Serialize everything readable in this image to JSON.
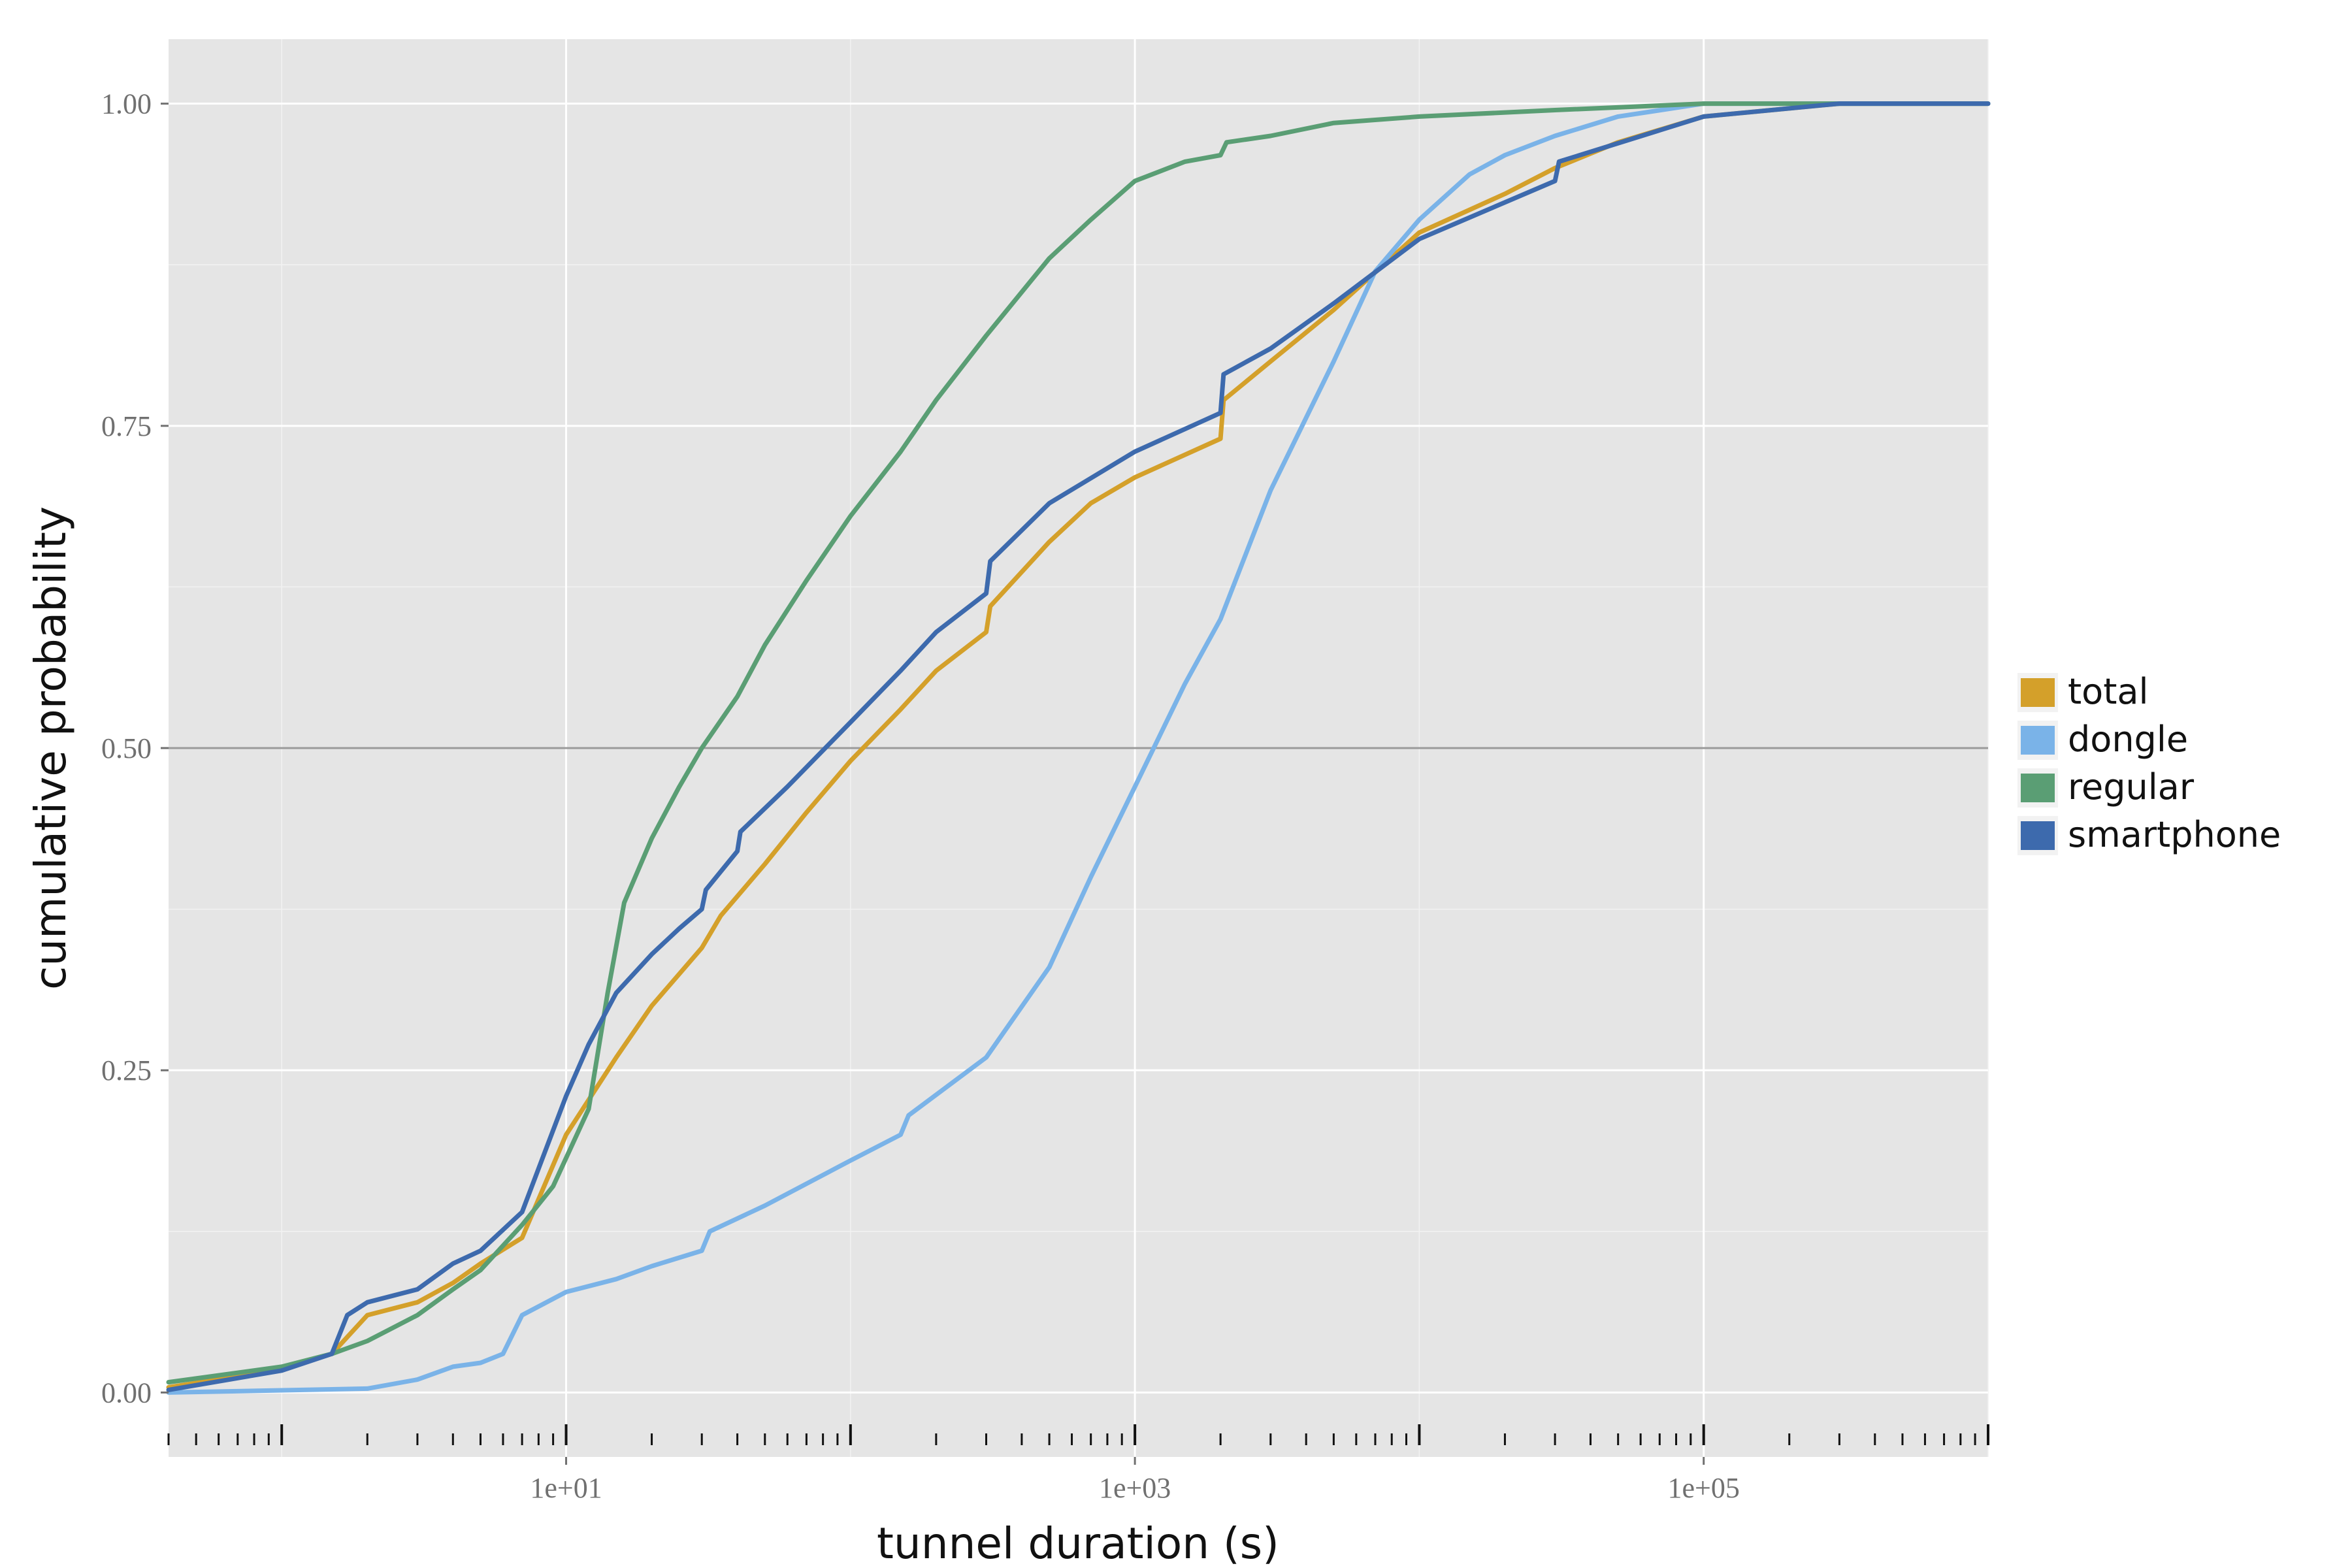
{
  "chart_data": {
    "type": "line",
    "title": "",
    "xlabel": "tunnel duration (s)",
    "ylabel": "cumulative probability",
    "x_scale": "log10",
    "xlim": [
      0.4,
      1000000
    ],
    "ylim": [
      -0.05,
      1.05
    ],
    "x_ticks": [
      {
        "value": 10,
        "label": "1e+01"
      },
      {
        "value": 1000,
        "label": "1e+03"
      },
      {
        "value": 100000,
        "label": "1e+05"
      }
    ],
    "y_ticks": [
      {
        "value": 0.0,
        "label": "0.00"
      },
      {
        "value": 0.25,
        "label": "0.25"
      },
      {
        "value": 0.5,
        "label": "0.50"
      },
      {
        "value": 0.75,
        "label": "0.75"
      },
      {
        "value": 1.0,
        "label": "1.00"
      }
    ],
    "reference_line": {
      "y": 0.5
    },
    "grid": true,
    "legend_position": "right",
    "series": [
      {
        "name": "total",
        "color": "#d4a02a",
        "points": [
          [
            0.4,
            0.004
          ],
          [
            1,
            0.018
          ],
          [
            1.5,
            0.03
          ],
          [
            2,
            0.06
          ],
          [
            3,
            0.07
          ],
          [
            4,
            0.085
          ],
          [
            5,
            0.1
          ],
          [
            7,
            0.12
          ],
          [
            10,
            0.2
          ],
          [
            15,
            0.26
          ],
          [
            20,
            0.3
          ],
          [
            30,
            0.345
          ],
          [
            35,
            0.37
          ],
          [
            50,
            0.41
          ],
          [
            70,
            0.45
          ],
          [
            100,
            0.49
          ],
          [
            150,
            0.53
          ],
          [
            200,
            0.56
          ],
          [
            300,
            0.59
          ],
          [
            310,
            0.61
          ],
          [
            500,
            0.66
          ],
          [
            700,
            0.69
          ],
          [
            1000,
            0.71
          ],
          [
            2000,
            0.74
          ],
          [
            2050,
            0.77
          ],
          [
            3000,
            0.8
          ],
          [
            5000,
            0.84
          ],
          [
            10000,
            0.9
          ],
          [
            20000,
            0.93
          ],
          [
            30000,
            0.95
          ],
          [
            50000,
            0.97
          ],
          [
            100000,
            0.99
          ],
          [
            300000,
            1.0
          ],
          [
            1000000,
            1.0
          ]
        ]
      },
      {
        "name": "dongle",
        "color": "#7ab3e8",
        "points": [
          [
            0.4,
            0.0
          ],
          [
            2,
            0.003
          ],
          [
            3,
            0.01
          ],
          [
            4,
            0.02
          ],
          [
            5,
            0.023
          ],
          [
            6,
            0.03
          ],
          [
            7,
            0.06
          ],
          [
            10,
            0.078
          ],
          [
            15,
            0.088
          ],
          [
            20,
            0.098
          ],
          [
            30,
            0.11
          ],
          [
            32,
            0.125
          ],
          [
            50,
            0.145
          ],
          [
            100,
            0.18
          ],
          [
            150,
            0.2
          ],
          [
            160,
            0.215
          ],
          [
            300,
            0.26
          ],
          [
            500,
            0.33
          ],
          [
            700,
            0.4
          ],
          [
            1000,
            0.47
          ],
          [
            1500,
            0.55
          ],
          [
            2000,
            0.6
          ],
          [
            3000,
            0.7
          ],
          [
            5000,
            0.8
          ],
          [
            7000,
            0.87
          ],
          [
            10000,
            0.91
          ],
          [
            15000,
            0.945
          ],
          [
            20000,
            0.96
          ],
          [
            30000,
            0.975
          ],
          [
            50000,
            0.99
          ],
          [
            100000,
            1.0
          ],
          [
            1000000,
            1.0
          ]
        ]
      },
      {
        "name": "regular",
        "color": "#5a9e74",
        "points": [
          [
            0.4,
            0.008
          ],
          [
            1,
            0.02
          ],
          [
            1.5,
            0.03
          ],
          [
            2,
            0.04
          ],
          [
            3,
            0.06
          ],
          [
            4,
            0.08
          ],
          [
            5,
            0.095
          ],
          [
            7,
            0.13
          ],
          [
            9,
            0.16
          ],
          [
            12,
            0.22
          ],
          [
            14,
            0.31
          ],
          [
            16,
            0.38
          ],
          [
            20,
            0.43
          ],
          [
            25,
            0.47
          ],
          [
            30,
            0.5
          ],
          [
            40,
            0.54
          ],
          [
            50,
            0.58
          ],
          [
            70,
            0.63
          ],
          [
            100,
            0.68
          ],
          [
            150,
            0.73
          ],
          [
            200,
            0.77
          ],
          [
            300,
            0.82
          ],
          [
            500,
            0.88
          ],
          [
            700,
            0.91
          ],
          [
            1000,
            0.94
          ],
          [
            1500,
            0.955
          ],
          [
            2000,
            0.96
          ],
          [
            2100,
            0.97
          ],
          [
            3000,
            0.975
          ],
          [
            5000,
            0.985
          ],
          [
            10000,
            0.99
          ],
          [
            30000,
            0.995
          ],
          [
            100000,
            1.0
          ],
          [
            1000000,
            1.0
          ]
        ]
      },
      {
        "name": "smartphone",
        "color": "#3d6aad",
        "points": [
          [
            0.4,
            0.002
          ],
          [
            1,
            0.017
          ],
          [
            1.5,
            0.03
          ],
          [
            1.7,
            0.06
          ],
          [
            2,
            0.07
          ],
          [
            3,
            0.08
          ],
          [
            4,
            0.1
          ],
          [
            5,
            0.11
          ],
          [
            7,
            0.14
          ],
          [
            10,
            0.23
          ],
          [
            12,
            0.27
          ],
          [
            15,
            0.31
          ],
          [
            20,
            0.34
          ],
          [
            25,
            0.36
          ],
          [
            30,
            0.375
          ],
          [
            31,
            0.39
          ],
          [
            40,
            0.42
          ],
          [
            41,
            0.435
          ],
          [
            60,
            0.47
          ],
          [
            100,
            0.52
          ],
          [
            150,
            0.56
          ],
          [
            200,
            0.59
          ],
          [
            300,
            0.62
          ],
          [
            310,
            0.645
          ],
          [
            500,
            0.69
          ],
          [
            1000,
            0.73
          ],
          [
            2000,
            0.76
          ],
          [
            2050,
            0.79
          ],
          [
            3000,
            0.81
          ],
          [
            5000,
            0.845
          ],
          [
            10000,
            0.895
          ],
          [
            30000,
            0.94
          ],
          [
            31000,
            0.955
          ],
          [
            100000,
            0.99
          ],
          [
            300000,
            1.0
          ],
          [
            1000000,
            1.0
          ]
        ]
      }
    ]
  }
}
